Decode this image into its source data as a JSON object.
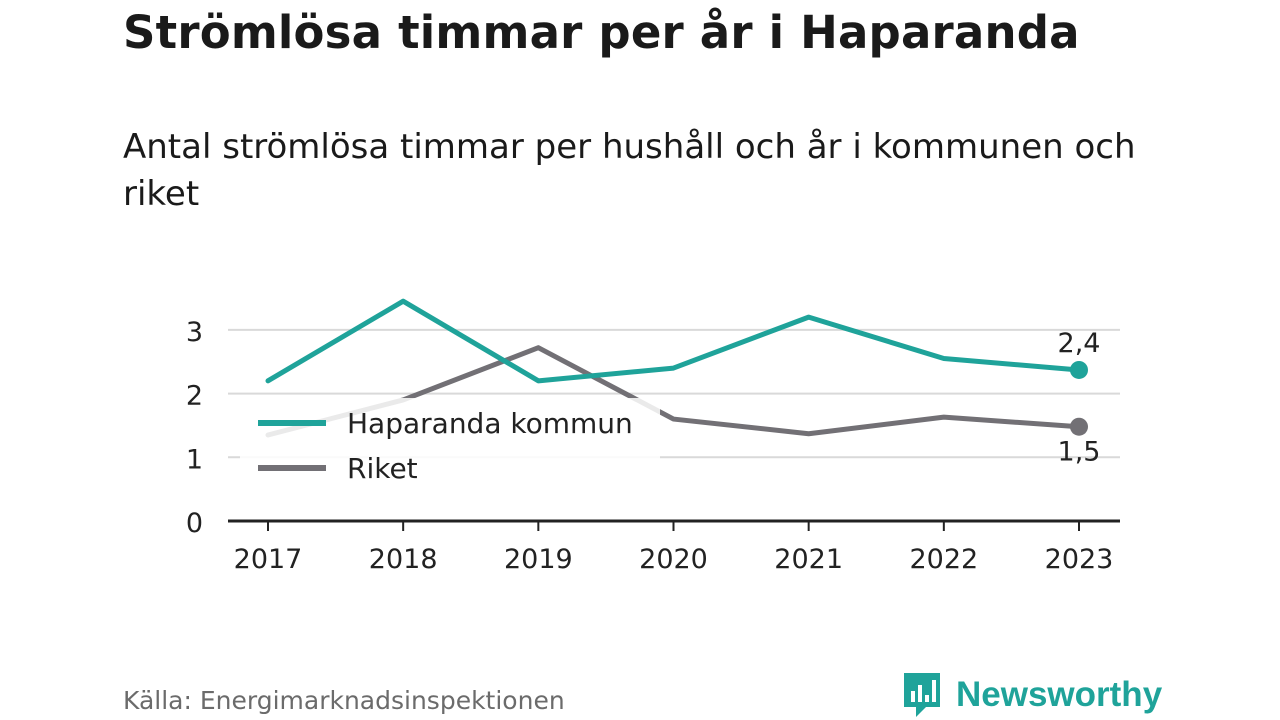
{
  "title": "Strömlösa timmar per år i Haparanda",
  "subtitle": "Antal strömlösa timmar per hushåll och år i kommunen och riket",
  "source": "Källa: Energimarknadsinspektionen",
  "brand": "Newsworthy",
  "colors": {
    "haparanda": "#1fa39a",
    "riket": "#727075",
    "grid": "#d9d9d9",
    "axis": "#222222",
    "brand": "#1fa39a"
  },
  "chart_data": {
    "type": "line",
    "x": [
      "2017",
      "2018",
      "2019",
      "2020",
      "2021",
      "2022",
      "2023"
    ],
    "ylim": [
      0,
      3.5
    ],
    "yticks": [
      "0",
      "1",
      "2",
      "3"
    ],
    "grid": true,
    "legend_placement": "inside-left",
    "series": [
      {
        "name": "Haparanda kommun",
        "values": [
          2.2,
          3.45,
          2.2,
          2.4,
          3.2,
          2.55,
          2.37
        ],
        "end_label": "2,4"
      },
      {
        "name": "Riket",
        "values": [
          1.35,
          1.9,
          2.72,
          1.6,
          1.37,
          1.63,
          1.48
        ],
        "end_label": "1,5"
      }
    ]
  }
}
